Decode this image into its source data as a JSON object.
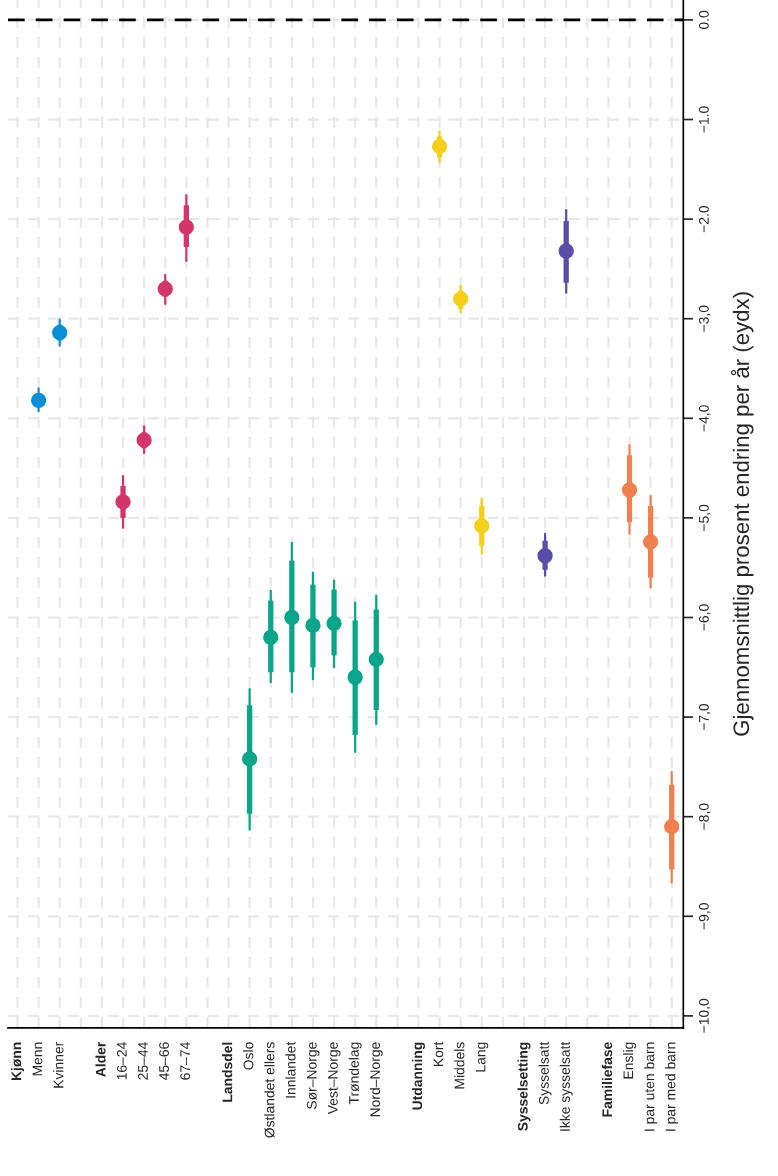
{
  "chart_data": {
    "type": "box",
    "ylabel": "Gjennomsnittlig prosent endring per år (eydx)",
    "categories": [
      "Kjønn",
      "Menn",
      "Kvinner",
      null,
      "Alder",
      "16–24",
      "25–44",
      "45–66",
      "67–74",
      null,
      "Landsdel",
      "Oslo",
      "Østlandet ellers",
      "Innlandet",
      "Sør–Norge",
      "Vest–Norge",
      "Trøndelag",
      "Nord–Norge",
      null,
      "Utdanning",
      "Kort",
      "Middels",
      "Lang",
      null,
      "Sysselsetting",
      "Sysselsatt",
      "Ikke sysselsatt",
      null,
      "Familiefase",
      "Enslig",
      "I par uten barn",
      "I par med barn"
    ],
    "colors": [
      null,
      "#0a8fd6",
      "#0a8fd6",
      null,
      null,
      "#d3356b",
      "#d3356b",
      "#d3356b",
      "#d3356b",
      null,
      null,
      "#0aa58a",
      "#0aa58a",
      "#0aa58a",
      "#0aa58a",
      "#0aa58a",
      "#0aa58a",
      "#0aa58a",
      null,
      null,
      "#f5cf1a",
      "#f5cf1a",
      "#f5cf1a",
      null,
      null,
      "#5b4ea8",
      "#5b4ea8",
      null,
      null,
      "#f0804f",
      "#f0804f",
      "#f0804f"
    ],
    "boxes": [
      null,
      {
        "low": -3.93,
        "q1": -3.88,
        "median": -3.82,
        "q3": -3.76,
        "high": -3.7,
        "mean": -3.82
      },
      {
        "low": -3.27,
        "q1": -3.22,
        "median": -3.14,
        "q3": -3.06,
        "high": -3.01,
        "mean": -3.14
      },
      null,
      null,
      {
        "low": -5.1,
        "q1": -5.0,
        "median": -4.84,
        "q3": -4.68,
        "high": -4.58,
        "mean": -4.84
      },
      {
        "low": -4.35,
        "q1": -4.3,
        "median": -4.22,
        "q3": -4.14,
        "high": -4.08,
        "mean": -4.22
      },
      {
        "low": -2.85,
        "q1": -2.78,
        "median": -2.7,
        "q3": -2.62,
        "high": -2.56,
        "mean": -2.7
      },
      {
        "low": -2.42,
        "q1": -2.28,
        "median": -2.08,
        "q3": -1.86,
        "high": -1.76,
        "mean": -2.08
      },
      null,
      null,
      {
        "low": -8.13,
        "q1": -7.97,
        "median": -7.42,
        "q3": -6.88,
        "high": -6.72,
        "mean": -7.42
      },
      {
        "low": -6.65,
        "q1": -6.55,
        "median": -6.2,
        "q3": -5.83,
        "high": -5.73,
        "mean": -6.2
      },
      {
        "low": -6.75,
        "q1": -6.55,
        "median": -6.0,
        "q3": -5.43,
        "high": -5.25,
        "mean": -6.0
      },
      {
        "low": -6.62,
        "q1": -6.5,
        "median": -6.08,
        "q3": -5.67,
        "high": -5.55,
        "mean": -6.08
      },
      {
        "low": -6.5,
        "q1": -6.38,
        "median": -6.06,
        "q3": -5.72,
        "high": -5.63,
        "mean": -6.06
      },
      {
        "low": -7.35,
        "q1": -7.18,
        "median": -6.6,
        "q3": -6.03,
        "high": -5.85,
        "mean": -6.6
      },
      {
        "low": -7.07,
        "q1": -6.93,
        "median": -6.42,
        "q3": -5.92,
        "high": -5.78,
        "mean": -6.42
      },
      null,
      null,
      {
        "low": -1.43,
        "q1": -1.38,
        "median": -1.27,
        "q3": -1.17,
        "high": -1.12,
        "mean": -1.27
      },
      {
        "low": -2.94,
        "q1": -2.9,
        "median": -2.8,
        "q3": -2.72,
        "high": -2.67,
        "mean": -2.8
      },
      {
        "low": -5.36,
        "q1": -5.28,
        "median": -5.08,
        "q3": -4.88,
        "high": -4.81,
        "mean": -5.08
      },
      null,
      null,
      {
        "low": -5.58,
        "q1": -5.52,
        "median": -5.38,
        "q3": -5.23,
        "high": -5.16,
        "mean": -5.38
      },
      {
        "low": -2.74,
        "q1": -2.64,
        "median": -2.32,
        "q3": -2.02,
        "high": -1.91,
        "mean": -2.32
      },
      null,
      null,
      {
        "low": -5.16,
        "q1": -5.04,
        "median": -4.72,
        "q3": -4.37,
        "high": -4.27,
        "mean": -4.72
      },
      {
        "low": -5.7,
        "q1": -5.6,
        "median": -5.24,
        "q3": -4.88,
        "high": -4.78,
        "mean": -5.24
      },
      {
        "low": -8.66,
        "q1": -8.53,
        "median": -8.1,
        "q3": -7.68,
        "high": -7.55,
        "mean": -8.1
      }
    ],
    "marker": "circle",
    "ylim": [
      -10.12,
      0.2
    ],
    "yticks": [
      {
        "value": 0,
        "label": "0.0"
      },
      {
        "value": -1,
        "label": "−1.0"
      },
      {
        "value": -2,
        "label": "−2.0"
      },
      {
        "value": -3,
        "label": "−3,0"
      },
      {
        "value": -4,
        "label": "−4,0"
      },
      {
        "value": -5,
        "label": "−5,0"
      },
      {
        "value": -6,
        "label": "−6,0"
      },
      {
        "value": -7,
        "label": "−7,0"
      },
      {
        "value": -8,
        "label": "−8,0"
      },
      {
        "value": -9,
        "label": "−9,0"
      },
      {
        "value": -10,
        "label": "−10,0"
      }
    ],
    "ref_lines": [
      {
        "axis": "y",
        "value": 0,
        "color": "#000000",
        "line_style": "dashed"
      }
    ],
    "grid": true
  }
}
